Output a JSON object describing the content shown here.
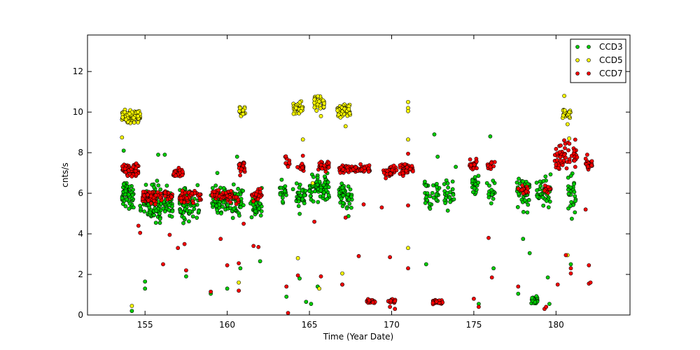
{
  "chart_data": {
    "type": "scatter",
    "xlabel": "Time (Year Date)",
    "ylabel": "cnts/s",
    "xlim": [
      151.5,
      184.5
    ],
    "ylim": [
      0,
      13.8
    ],
    "xticks": [
      155,
      160,
      165,
      170,
      175,
      180
    ],
    "yticks": [
      0,
      2,
      4,
      6,
      8,
      10,
      12
    ],
    "grid": false,
    "legend_position": "top-right",
    "series": [
      {
        "name": "CCD3",
        "color": "#00cc00",
        "clusters": [
          {
            "x": [
              153.6,
              154.3
            ],
            "y": [
              4.8,
              7.0
            ],
            "n": 55
          },
          {
            "x": [
              154.7,
              156.0
            ],
            "y": [
              4.2,
              6.8
            ],
            "n": 90
          },
          {
            "x": [
              156.1,
              156.7
            ],
            "y": [
              4.4,
              6.6
            ],
            "n": 40
          },
          {
            "x": [
              157.1,
              158.3
            ],
            "y": [
              4.3,
              6.6
            ],
            "n": 80
          },
          {
            "x": [
              159.0,
              161.0
            ],
            "y": [
              4.5,
              6.8
            ],
            "n": 110
          },
          {
            "x": [
              161.4,
              162.1
            ],
            "y": [
              4.4,
              6.4
            ],
            "n": 40
          },
          {
            "x": [
              163.2,
              163.6
            ],
            "y": [
              5.2,
              7.0
            ],
            "n": 18
          },
          {
            "x": [
              164.2,
              164.8
            ],
            "y": [
              4.9,
              7.0
            ],
            "n": 35
          },
          {
            "x": [
              165.0,
              166.2
            ],
            "y": [
              5.3,
              7.2
            ],
            "n": 70
          },
          {
            "x": [
              166.8,
              167.6
            ],
            "y": [
              4.7,
              6.9
            ],
            "n": 50
          },
          {
            "x": [
              172.0,
              172.9
            ],
            "y": [
              4.8,
              7.0
            ],
            "n": 35
          },
          {
            "x": [
              173.2,
              173.8
            ],
            "y": [
              5.0,
              7.0
            ],
            "n": 25
          },
          {
            "x": [
              174.9,
              175.3
            ],
            "y": [
              5.5,
              7.3
            ],
            "n": 20
          },
          {
            "x": [
              175.9,
              176.3
            ],
            "y": [
              5.3,
              7.2
            ],
            "n": 15
          },
          {
            "x": [
              177.6,
              178.4
            ],
            "y": [
              4.7,
              7.3
            ],
            "n": 40
          },
          {
            "x": [
              178.5,
              178.9
            ],
            "y": [
              0.5,
              1.0
            ],
            "n": 25
          },
          {
            "x": [
              178.8,
              179.7
            ],
            "y": [
              4.8,
              7.4
            ],
            "n": 40
          },
          {
            "x": [
              180.7,
              181.2
            ],
            "y": [
              4.6,
              7.3
            ],
            "n": 25
          }
        ],
        "points": [
          [
            153.7,
            8.1
          ],
          [
            155.8,
            7.9
          ],
          [
            156.2,
            7.9
          ],
          [
            158.2,
            6.4
          ],
          [
            159.4,
            7.0
          ],
          [
            160.6,
            7.8
          ],
          [
            172.6,
            8.9
          ],
          [
            172.8,
            7.8
          ],
          [
            176.0,
            8.8
          ],
          [
            173.9,
            7.3
          ],
          [
            155.0,
            1.65
          ],
          [
            155.0,
            1.3
          ],
          [
            154.2,
            0.2
          ],
          [
            157.5,
            1.9
          ],
          [
            159.0,
            1.05
          ],
          [
            160.0,
            1.3
          ],
          [
            160.8,
            2.3
          ],
          [
            162.0,
            2.65
          ],
          [
            163.6,
            0.9
          ],
          [
            164.4,
            1.8
          ],
          [
            164.8,
            0.65
          ],
          [
            165.1,
            0.55
          ],
          [
            165.5,
            1.4
          ],
          [
            167.0,
            1.5
          ],
          [
            172.1,
            2.5
          ],
          [
            175.3,
            0.55
          ],
          [
            176.2,
            2.3
          ],
          [
            177.7,
            1.05
          ],
          [
            178.0,
            3.75
          ],
          [
            178.4,
            3.05
          ],
          [
            179.5,
            1.85
          ],
          [
            179.6,
            0.55
          ],
          [
            180.9,
            2.5
          ],
          [
            164.0,
            6.2
          ],
          [
            175.8,
            6.5
          ]
        ]
      },
      {
        "name": "CCD5",
        "color": "#ffff00",
        "clusters": [
          {
            "x": [
              153.6,
              154.7
            ],
            "y": [
              9.3,
              10.3
            ],
            "n": 85
          },
          {
            "x": [
              160.7,
              161.1
            ],
            "y": [
              9.6,
              10.4
            ],
            "n": 20
          },
          {
            "x": [
              164.0,
              164.6
            ],
            "y": [
              9.8,
              10.6
            ],
            "n": 35
          },
          {
            "x": [
              165.3,
              165.9
            ],
            "y": [
              9.9,
              11.0
            ],
            "n": 30
          },
          {
            "x": [
              166.7,
              167.5
            ],
            "y": [
              9.6,
              10.5
            ],
            "n": 55
          },
          {
            "x": [
              180.4,
              180.9
            ],
            "y": [
              9.6,
              10.3
            ],
            "n": 25
          }
        ],
        "points": [
          [
            153.6,
            8.75
          ],
          [
            154.2,
            0.45
          ],
          [
            164.3,
            2.8
          ],
          [
            164.6,
            8.65
          ],
          [
            165.7,
            9.8
          ],
          [
            165.6,
            1.3
          ],
          [
            167.2,
            9.3
          ],
          [
            167.0,
            2.05
          ],
          [
            160.7,
            1.6
          ],
          [
            171.0,
            10.2
          ],
          [
            171.0,
            10.05
          ],
          [
            171.0,
            10.5
          ],
          [
            171.0,
            8.65
          ],
          [
            171.0,
            3.3
          ],
          [
            180.5,
            10.8
          ],
          [
            180.7,
            9.4
          ],
          [
            180.8,
            8.7
          ],
          [
            180.7,
            2.95
          ],
          [
            165.2,
            6.5
          ]
        ]
      },
      {
        "name": "CCD7",
        "color": "#ff0000",
        "clusters": [
          {
            "x": [
              153.6,
              154.6
            ],
            "y": [
              6.7,
              7.6
            ],
            "n": 60
          },
          {
            "x": [
              154.8,
              156.0
            ],
            "y": [
              5.3,
              6.3
            ],
            "n": 60
          },
          {
            "x": [
              156.1,
              156.7
            ],
            "y": [
              5.5,
              6.3
            ],
            "n": 20
          },
          {
            "x": [
              156.7,
              157.3
            ],
            "y": [
              6.7,
              7.3
            ],
            "n": 30
          },
          {
            "x": [
              157.1,
              158.4
            ],
            "y": [
              5.4,
              6.3
            ],
            "n": 45
          },
          {
            "x": [
              159.0,
              160.7
            ],
            "y": [
              5.4,
              6.3
            ],
            "n": 60
          },
          {
            "x": [
              160.7,
              161.1
            ],
            "y": [
              6.8,
              7.8
            ],
            "n": 25
          },
          {
            "x": [
              161.5,
              162.1
            ],
            "y": [
              5.5,
              6.4
            ],
            "n": 30
          },
          {
            "x": [
              163.5,
              163.8
            ],
            "y": [
              7.2,
              8.0
            ],
            "n": 10
          },
          {
            "x": [
              164.2,
              164.7
            ],
            "y": [
              7.0,
              7.5
            ],
            "n": 15
          },
          {
            "x": [
              165.5,
              166.2
            ],
            "y": [
              7.0,
              7.7
            ],
            "n": 25
          },
          {
            "x": [
              166.8,
              168.0
            ],
            "y": [
              6.9,
              7.5
            ],
            "n": 45
          },
          {
            "x": [
              168.1,
              168.7
            ],
            "y": [
              6.9,
              7.5
            ],
            "n": 25
          },
          {
            "x": [
              168.5,
              169.0
            ],
            "y": [
              0.55,
              0.8
            ],
            "n": 25
          },
          {
            "x": [
              169.5,
              170.3
            ],
            "y": [
              6.7,
              7.4
            ],
            "n": 35
          },
          {
            "x": [
              169.8,
              170.3
            ],
            "y": [
              0.55,
              0.8
            ],
            "n": 20
          },
          {
            "x": [
              170.5,
              171.3
            ],
            "y": [
              6.8,
              7.6
            ],
            "n": 40
          },
          {
            "x": [
              172.5,
              173.1
            ],
            "y": [
              0.5,
              0.8
            ],
            "n": 30
          },
          {
            "x": [
              174.7,
              175.2
            ],
            "y": [
              7.1,
              7.8
            ],
            "n": 20
          },
          {
            "x": [
              175.8,
              176.3
            ],
            "y": [
              7.0,
              7.7
            ],
            "n": 15
          },
          {
            "x": [
              177.7,
              178.3
            ],
            "y": [
              5.8,
              6.5
            ],
            "n": 20
          },
          {
            "x": [
              179.3,
              179.7
            ],
            "y": [
              5.9,
              6.5
            ],
            "n": 12
          },
          {
            "x": [
              179.9,
              181.3
            ],
            "y": [
              6.9,
              8.9
            ],
            "n": 55
          },
          {
            "x": [
              181.8,
              182.2
            ],
            "y": [
              7.1,
              7.8
            ],
            "n": 25
          }
        ],
        "points": [
          [
            154.6,
            4.4
          ],
          [
            154.7,
            4.05
          ],
          [
            156.1,
            2.5
          ],
          [
            156.5,
            3.95
          ],
          [
            157.0,
            3.3
          ],
          [
            157.4,
            3.5
          ],
          [
            157.5,
            2.2
          ],
          [
            159.0,
            1.15
          ],
          [
            159.6,
            3.75
          ],
          [
            160.0,
            2.45
          ],
          [
            160.7,
            2.55
          ],
          [
            160.7,
            1.2
          ],
          [
            161.0,
            4.5
          ],
          [
            161.6,
            3.4
          ],
          [
            161.9,
            3.35
          ],
          [
            163.6,
            1.4
          ],
          [
            163.7,
            0.1
          ],
          [
            164.3,
            1.95
          ],
          [
            164.6,
            7.85
          ],
          [
            165.3,
            4.6
          ],
          [
            165.7,
            1.9
          ],
          [
            167.0,
            1.5
          ],
          [
            167.2,
            4.8
          ],
          [
            168.0,
            2.9
          ],
          [
            168.3,
            5.45
          ],
          [
            169.4,
            5.3
          ],
          [
            169.9,
            2.85
          ],
          [
            169.9,
            0.4
          ],
          [
            170.2,
            0.3
          ],
          [
            171.0,
            5.4
          ],
          [
            171.0,
            2.3
          ],
          [
            171.0,
            7.95
          ],
          [
            175.0,
            0.8
          ],
          [
            175.3,
            0.4
          ],
          [
            176.1,
            1.85
          ],
          [
            175.9,
            3.8
          ],
          [
            177.7,
            1.4
          ],
          [
            179.3,
            0.3
          ],
          [
            179.4,
            0.4
          ],
          [
            180.1,
            1.5
          ],
          [
            180.6,
            2.95
          ],
          [
            180.9,
            2.3
          ],
          [
            180.9,
            2.05
          ],
          [
            181.8,
            5.2
          ],
          [
            182.0,
            1.55
          ],
          [
            182.1,
            1.6
          ],
          [
            182.0,
            2.45
          ],
          [
            181.9,
            7.9
          ]
        ]
      }
    ]
  }
}
